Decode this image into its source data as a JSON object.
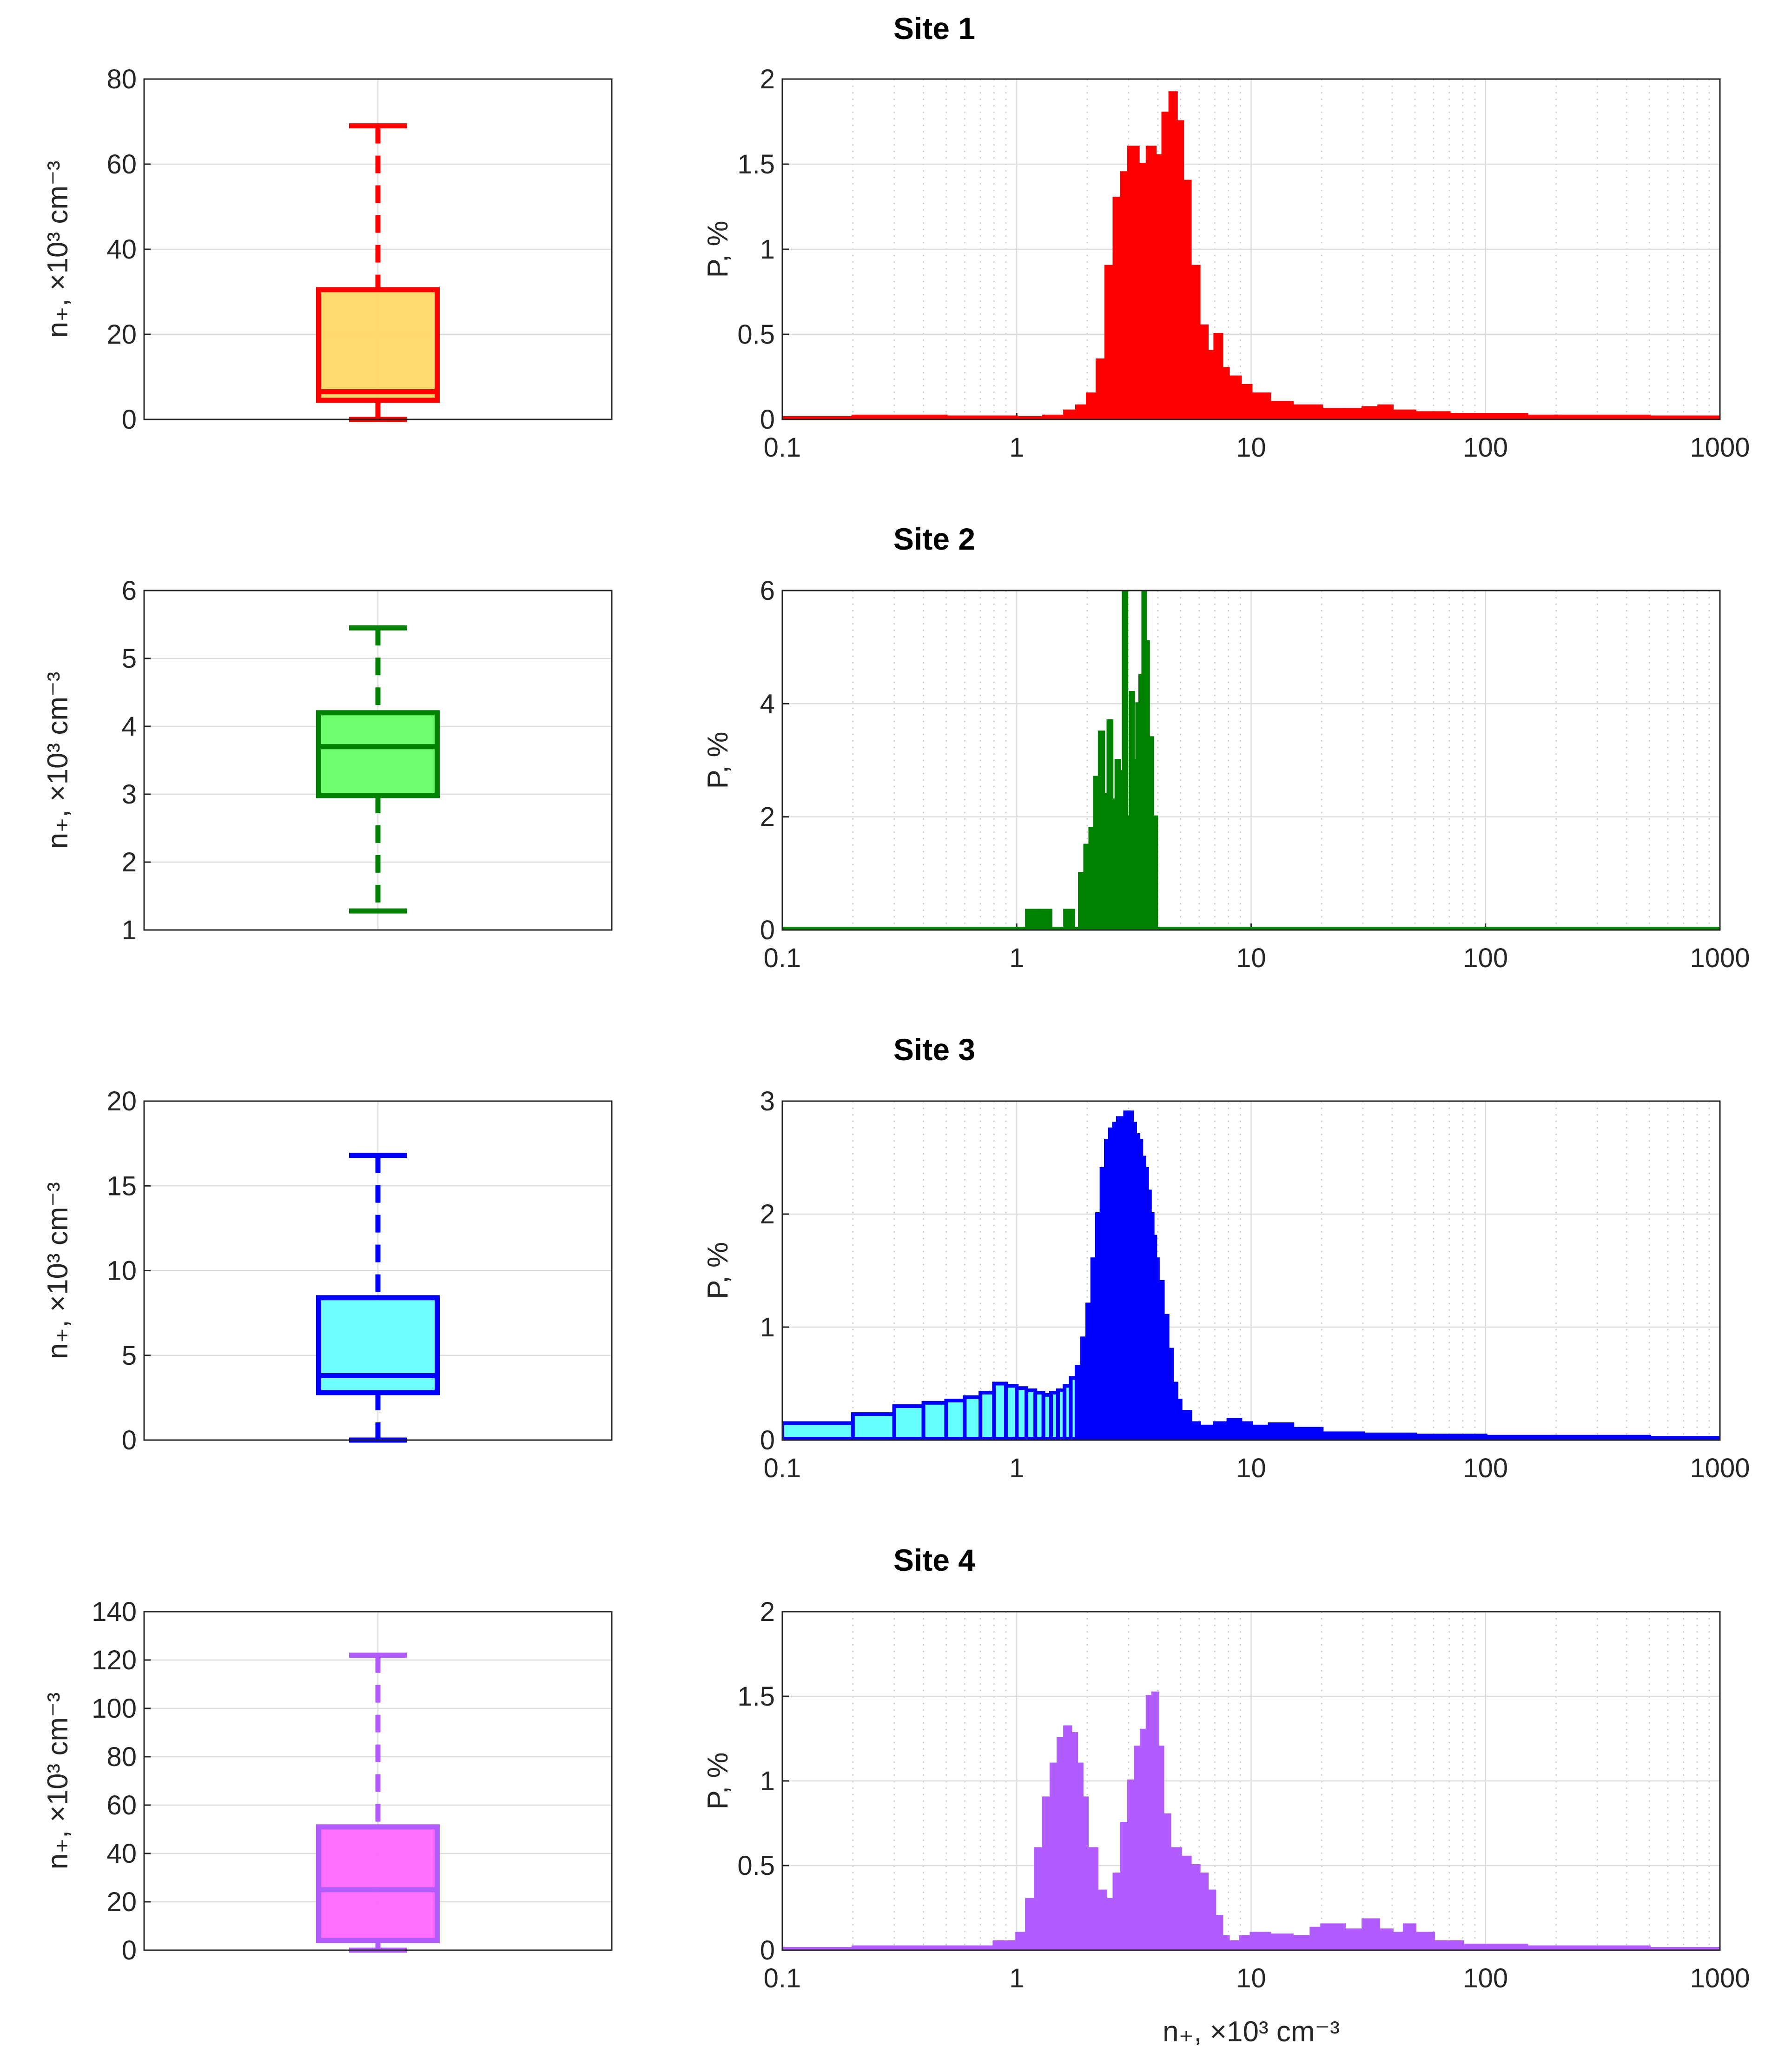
{
  "chart_data": [
    {
      "type": "box",
      "site": "Site 1",
      "ylabel": "n₊, ×10³ cm⁻³",
      "ylim": [
        0,
        80
      ],
      "yticks": [
        0,
        20,
        40,
        60,
        80
      ],
      "box": {
        "min": 0,
        "q1": 4.5,
        "median": 6.5,
        "q3": 30.5,
        "max": 69
      },
      "colors": {
        "edge": "#ff0000",
        "fill": "#ffd966"
      }
    },
    {
      "type": "histogram",
      "title": "Site 1",
      "ylabel": "P, %",
      "xscale": "log",
      "xlim": [
        0.1,
        1000
      ],
      "xticks": [
        "0.1",
        "1",
        "10",
        "100",
        "1000"
      ],
      "ylim": [
        0,
        2
      ],
      "yticks": [
        "0",
        "0.5",
        "1",
        "1.5",
        "2"
      ],
      "colors": {
        "edge": "#ff0000",
        "fill": "#ff0000"
      },
      "x": [
        0.1,
        0.2,
        0.5,
        1.0,
        1.3,
        1.6,
        1.8,
        2.0,
        2.2,
        2.4,
        2.6,
        2.8,
        3.0,
        3.3,
        3.6,
        3.9,
        4.2,
        4.5,
        4.8,
        5.1,
        5.5,
        6.0,
        6.5,
        7.0,
        7.5,
        8.0,
        9.0,
        10,
        12,
        15,
        20,
        25,
        30,
        35,
        40,
        50,
        70,
        100,
        150,
        200,
        500,
        1000
      ],
      "values": [
        0.01,
        0.02,
        0.015,
        0.01,
        0.02,
        0.05,
        0.08,
        0.15,
        0.35,
        0.9,
        1.3,
        1.45,
        1.6,
        1.5,
        1.6,
        1.55,
        1.8,
        1.92,
        1.75,
        1.4,
        0.9,
        0.55,
        0.4,
        0.5,
        0.3,
        0.25,
        0.2,
        0.15,
        0.1,
        0.08,
        0.06,
        0.06,
        0.07,
        0.08,
        0.05,
        0.04,
        0.03,
        0.03,
        0.02,
        0.02,
        0.015,
        0.01
      ]
    },
    {
      "type": "box",
      "site": "Site 2",
      "ylabel": "n₊, ×10³ cm⁻³",
      "ylim": [
        1,
        6
      ],
      "yticks": [
        1,
        2,
        3,
        4,
        5,
        6
      ],
      "box": {
        "min": 1.28,
        "q1": 2.98,
        "median": 3.7,
        "q3": 4.2,
        "max": 5.45
      },
      "colors": {
        "edge": "#008000",
        "fill": "#66ff66"
      }
    },
    {
      "type": "histogram",
      "title": "Site 2",
      "ylabel": "P, %",
      "xscale": "log",
      "xlim": [
        0.1,
        1000
      ],
      "xticks": [
        "0.1",
        "1",
        "10",
        "100",
        "1000"
      ],
      "ylim": [
        0,
        6
      ],
      "yticks": [
        "0",
        "2",
        "4",
        "6"
      ],
      "colors": {
        "edge": "#008000",
        "fill": "#008000"
      },
      "x": [
        0.1,
        1.0,
        1.1,
        1.25,
        1.4,
        1.6,
        1.75,
        1.85,
        1.95,
        2.05,
        2.15,
        2.25,
        2.35,
        2.45,
        2.55,
        2.65,
        2.75,
        2.85,
        2.95,
        3.05,
        3.15,
        3.25,
        3.35,
        3.45,
        3.55,
        3.65,
        3.8,
        3.95,
        4.1,
        4.25,
        4.4,
        4.6,
        4.85,
        5.1,
        5.35,
        5.6,
        1000
      ],
      "values": [
        0,
        0,
        0.35,
        0.35,
        0,
        0.35,
        0,
        1.0,
        1.5,
        1.8,
        2.7,
        3.5,
        2.4,
        3.7,
        2.3,
        3.0,
        2.8,
        6.0,
        2.0,
        4.2,
        3.0,
        4.0,
        4.5,
        6.0,
        5.1,
        3.4,
        2.0,
        0,
        0,
        0,
        0,
        0,
        0,
        0,
        0,
        0,
        0
      ]
    },
    {
      "type": "box",
      "site": "Site 3",
      "ylabel": "n₊, ×10³ cm⁻³",
      "ylim": [
        0,
        20
      ],
      "yticks": [
        0,
        5,
        10,
        15,
        20
      ],
      "box": {
        "min": 0,
        "q1": 2.8,
        "median": 3.8,
        "q3": 8.4,
        "max": 16.8
      },
      "colors": {
        "edge": "#0000ff",
        "fill": "#66ffff"
      }
    },
    {
      "type": "histogram",
      "title": "Site 3",
      "ylabel": "P, %",
      "xscale": "log",
      "xlim": [
        0.1,
        1000
      ],
      "xticks": [
        "0.1",
        "1",
        "10",
        "100",
        "1000"
      ],
      "ylim": [
        0,
        3
      ],
      "yticks": [
        "0",
        "1",
        "2",
        "3"
      ],
      "colors": {
        "edge": "#0000ff",
        "fill": "#66ffff",
        "dense_fill": "#0000ff"
      },
      "x": [
        0.1,
        0.2,
        0.3,
        0.4,
        0.5,
        0.6,
        0.7,
        0.8,
        0.9,
        1.0,
        1.1,
        1.2,
        1.3,
        1.4,
        1.5,
        1.6,
        1.7,
        1.8,
        1.9,
        2.0,
        2.1,
        2.2,
        2.3,
        2.4,
        2.5,
        2.6,
        2.7,
        2.8,
        2.9,
        3.0,
        3.1,
        3.2,
        3.3,
        3.4,
        3.5,
        3.6,
        3.7,
        3.8,
        3.9,
        4.0,
        4.2,
        4.4,
        4.6,
        4.8,
        5.0,
        5.5,
        6.0,
        7.0,
        8.0,
        9.0,
        10,
        12,
        15,
        20,
        30,
        50,
        100,
        200,
        500,
        1000
      ],
      "values": [
        0.15,
        0.23,
        0.3,
        0.33,
        0.35,
        0.38,
        0.42,
        0.5,
        0.48,
        0.46,
        0.44,
        0.42,
        0.4,
        0.42,
        0.44,
        0.48,
        0.55,
        0.65,
        0.9,
        1.2,
        1.6,
        2.0,
        2.4,
        2.65,
        2.75,
        2.8,
        2.85,
        2.82,
        2.9,
        2.9,
        2.8,
        2.7,
        2.65,
        2.5,
        2.4,
        2.2,
        2.0,
        1.8,
        1.6,
        1.4,
        1.1,
        0.8,
        0.5,
        0.35,
        0.25,
        0.15,
        0.12,
        0.15,
        0.18,
        0.15,
        0.12,
        0.14,
        0.1,
        0.06,
        0.05,
        0.04,
        0.03,
        0.03,
        0.02,
        0.01
      ]
    },
    {
      "type": "box",
      "site": "Site 4",
      "ylabel": "n₊, ×10³ cm⁻³",
      "ylim": [
        0,
        140
      ],
      "yticks": [
        0,
        20,
        40,
        60,
        80,
        100,
        120,
        140
      ],
      "box": {
        "min": 0,
        "q1": 4,
        "median": 25,
        "q3": 51,
        "max": 122
      },
      "colors": {
        "edge": "#b05cff",
        "fill": "#ff66ff"
      }
    },
    {
      "type": "histogram",
      "title": "Site 4",
      "ylabel": "P, %",
      "xlabel": "n₊, ×10³ cm⁻³",
      "xscale": "log",
      "xlim": [
        0.1,
        1000
      ],
      "xticks": [
        "0.1",
        "1",
        "10",
        "100",
        "1000"
      ],
      "ylim": [
        0,
        2
      ],
      "yticks": [
        "0",
        "0.5",
        "1",
        "1.5",
        "2"
      ],
      "colors": {
        "edge": "#b05cff",
        "fill": "#b05cff"
      },
      "x": [
        0.1,
        0.2,
        0.5,
        0.8,
        1.0,
        1.1,
        1.2,
        1.3,
        1.4,
        1.5,
        1.6,
        1.7,
        1.8,
        1.9,
        2.0,
        2.2,
        2.4,
        2.6,
        2.8,
        3.0,
        3.2,
        3.4,
        3.6,
        3.8,
        4.0,
        4.2,
        4.5,
        5.0,
        5.5,
        6.0,
        6.5,
        7.0,
        7.5,
        8.0,
        9.0,
        10,
        12,
        15,
        18,
        20,
        25,
        30,
        35,
        40,
        45,
        50,
        60,
        80,
        100,
        150,
        200,
        500,
        1000
      ],
      "values": [
        0.01,
        0.02,
        0.02,
        0.05,
        0.1,
        0.3,
        0.6,
        0.9,
        1.1,
        1.25,
        1.32,
        1.28,
        1.1,
        0.9,
        0.6,
        0.35,
        0.3,
        0.45,
        0.75,
        1.0,
        1.2,
        1.3,
        1.5,
        1.52,
        1.2,
        0.8,
        0.6,
        0.55,
        0.5,
        0.45,
        0.35,
        0.2,
        0.08,
        0.05,
        0.08,
        0.1,
        0.09,
        0.08,
        0.13,
        0.15,
        0.12,
        0.18,
        0.12,
        0.1,
        0.15,
        0.1,
        0.05,
        0.03,
        0.03,
        0.02,
        0.02,
        0.01,
        0.01
      ]
    }
  ]
}
